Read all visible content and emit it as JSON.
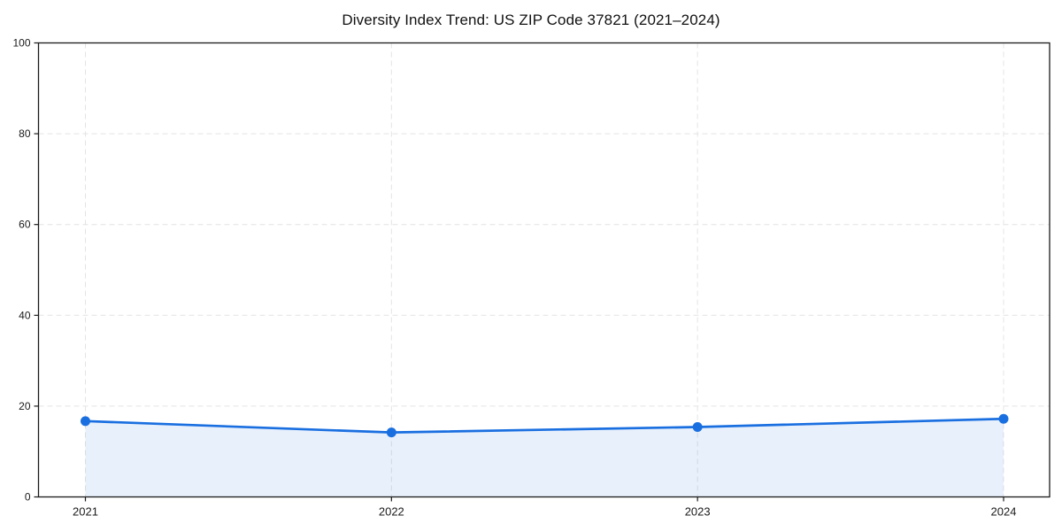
{
  "chart_data": {
    "type": "area",
    "title": "Diversity Index Trend: US ZIP Code 37821 (2021–2024)",
    "series_name": "Diversity Index",
    "x": [
      2021,
      2022,
      2023,
      2024
    ],
    "values": [
      16.7,
      14.2,
      15.4,
      17.2
    ],
    "xlabel": "",
    "ylabel": "",
    "ylim": [
      0,
      100
    ],
    "yticks": [
      0,
      20,
      40,
      60,
      80,
      100
    ],
    "xticks": [
      "2021",
      "2022",
      "2023",
      "2024"
    ],
    "grid": true,
    "grid_style": "dashed",
    "legend": false,
    "colors": {
      "line": "#1a6fe0",
      "marker": "#1a6fe0",
      "fill": "rgba(26,111,224,0.10)",
      "grid": "#e4e4e4",
      "spine": "#1a1a1a",
      "tick_label": "#1a1a1a",
      "title": "#111111",
      "background": "#ffffff"
    }
  }
}
